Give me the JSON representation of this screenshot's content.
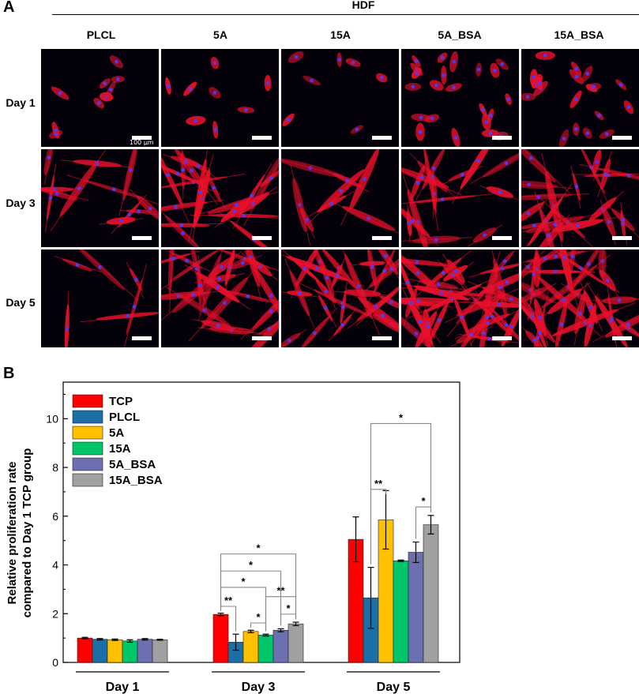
{
  "panel_a": {
    "letter": "A",
    "title": "HDF",
    "columns": [
      "PLCL",
      "5A",
      "15A",
      "5A_BSA",
      "15A_BSA"
    ],
    "rows": [
      "Day 1",
      "Day 3",
      "Day 5"
    ],
    "scale_bar_label": "100 μm"
  },
  "panel_b": {
    "letter": "B"
  },
  "chart_data": {
    "type": "bar",
    "title": "",
    "xlabel": "",
    "ylabel": "Relative proliferation rate compared to Day 1 TCP group",
    "ylabel_lines": [
      "Relative proliferation rate",
      "compared to Day 1 TCP group"
    ],
    "ylim": [
      0,
      11.5
    ],
    "yticks": [
      0,
      2,
      4,
      6,
      8,
      10
    ],
    "grid": false,
    "legend_position": "top-left",
    "categories": [
      "Day 1",
      "Day 3",
      "Day 5"
    ],
    "series": [
      {
        "name": "TCP",
        "color": "#ff0000",
        "values": [
          1.0,
          1.97,
          5.05
        ],
        "errors": [
          0.03,
          0.05,
          0.92
        ]
      },
      {
        "name": "PLCL",
        "color": "#1c6fa6",
        "values": [
          0.95,
          0.83,
          2.65
        ],
        "errors": [
          0.03,
          0.33,
          1.25
        ]
      },
      {
        "name": "5A",
        "color": "#ffc000",
        "values": [
          0.93,
          1.27,
          5.85
        ],
        "errors": [
          0.03,
          0.05,
          1.2
        ]
      },
      {
        "name": "15A",
        "color": "#00c569",
        "values": [
          0.88,
          1.12,
          4.17
        ],
        "errors": [
          0.05,
          0.04,
          0.03
        ]
      },
      {
        "name": "5A_BSA",
        "color": "#6c6fb0",
        "values": [
          0.95,
          1.32,
          4.52
        ],
        "errors": [
          0.03,
          0.06,
          0.42
        ]
      },
      {
        "name": "15A_BSA",
        "color": "#a0a0a0",
        "values": [
          0.93,
          1.58,
          5.65
        ],
        "errors": [
          0.02,
          0.07,
          0.38
        ]
      }
    ],
    "significance": [
      {
        "group": 1,
        "from": 0,
        "to": 1,
        "label": "**",
        "level": 2.3
      },
      {
        "group": 1,
        "from": 2,
        "to": 3,
        "label": "*",
        "level": 1.62
      },
      {
        "group": 1,
        "from": 4,
        "to": 5,
        "label": "*",
        "level": 1.98
      },
      {
        "group": 1,
        "from": 0,
        "to": 3,
        "label": "*",
        "level": 3.08
      },
      {
        "group": 1,
        "from": 3,
        "to": 5,
        "label": "**",
        "level": 2.7
      },
      {
        "group": 1,
        "from": 0,
        "to": 4,
        "label": "*",
        "level": 3.75
      },
      {
        "group": 1,
        "from": 0,
        "to": 5,
        "label": "*",
        "level": 4.45
      },
      {
        "group": 2,
        "from": 1,
        "to": 2,
        "label": "**",
        "level": 7.1
      },
      {
        "group": 2,
        "from": 4,
        "to": 5,
        "label": "*",
        "level": 6.38
      },
      {
        "group": 2,
        "from": 1,
        "to": 5,
        "label": "*",
        "level": 9.8
      }
    ]
  },
  "colors": {
    "cell_red": "#e8102a",
    "nucleus_blue": "#4b3cff",
    "micro_background": "#04010a"
  }
}
